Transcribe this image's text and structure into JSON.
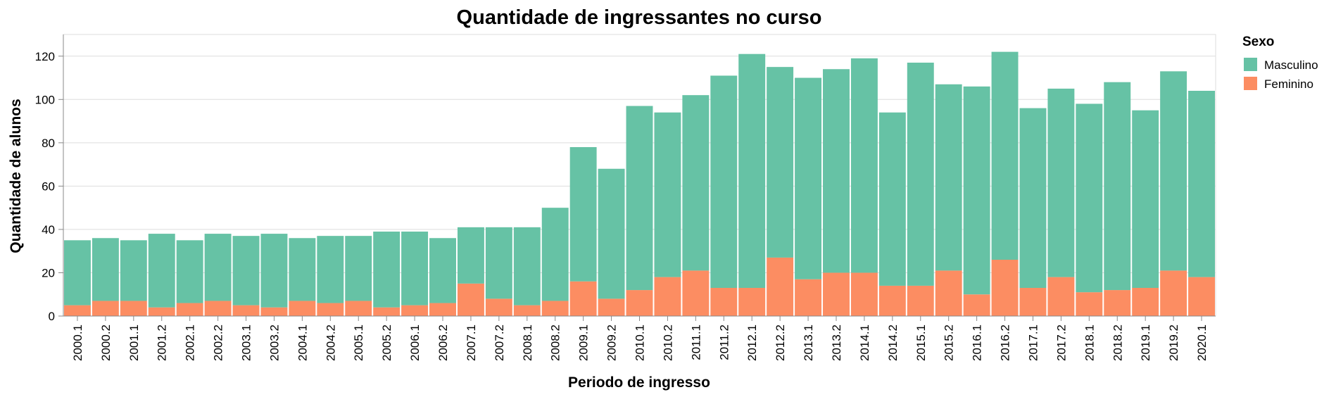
{
  "chart_data": {
    "type": "bar",
    "stacked": true,
    "title": "Quantidade de ingressantes no curso",
    "xlabel": "Periodo de ingresso",
    "ylabel": "Quantidade de alunos",
    "ylim": [
      0,
      130
    ],
    "yticks": [
      0,
      20,
      40,
      60,
      80,
      100,
      120
    ],
    "grid": true,
    "legend": {
      "title": "Sexo",
      "position": "right"
    },
    "categories": [
      "2000.1",
      "2000.2",
      "2001.1",
      "2001.2",
      "2002.1",
      "2002.2",
      "2003.1",
      "2003.2",
      "2004.1",
      "2004.2",
      "2005.1",
      "2005.2",
      "2006.1",
      "2006.2",
      "2007.1",
      "2007.2",
      "2008.1",
      "2008.2",
      "2009.1",
      "2009.2",
      "2010.1",
      "2010.2",
      "2011.1",
      "2011.2",
      "2012.1",
      "2012.2",
      "2013.1",
      "2013.2",
      "2014.1",
      "2014.2",
      "2015.1",
      "2015.2",
      "2016.1",
      "2016.2",
      "2017.1",
      "2017.2",
      "2018.1",
      "2018.2",
      "2019.1",
      "2019.2",
      "2020.1"
    ],
    "series": [
      {
        "name": "Masculino",
        "color": "#66c2a5",
        "values": [
          30,
          29,
          28,
          34,
          29,
          31,
          32,
          34,
          29,
          31,
          30,
          35,
          34,
          30,
          26,
          33,
          36,
          43,
          62,
          60,
          85,
          76,
          81,
          98,
          108,
          88,
          93,
          94,
          99,
          80,
          103,
          86,
          96,
          96,
          83,
          87,
          87,
          96,
          82,
          92,
          86
        ]
      },
      {
        "name": "Feminino",
        "color": "#fc8d62",
        "values": [
          5,
          7,
          7,
          4,
          6,
          7,
          5,
          4,
          7,
          6,
          7,
          4,
          5,
          6,
          15,
          8,
          5,
          7,
          16,
          8,
          12,
          18,
          21,
          13,
          13,
          27,
          17,
          20,
          20,
          14,
          14,
          21,
          10,
          26,
          13,
          18,
          11,
          12,
          13,
          21,
          18
        ]
      }
    ]
  }
}
